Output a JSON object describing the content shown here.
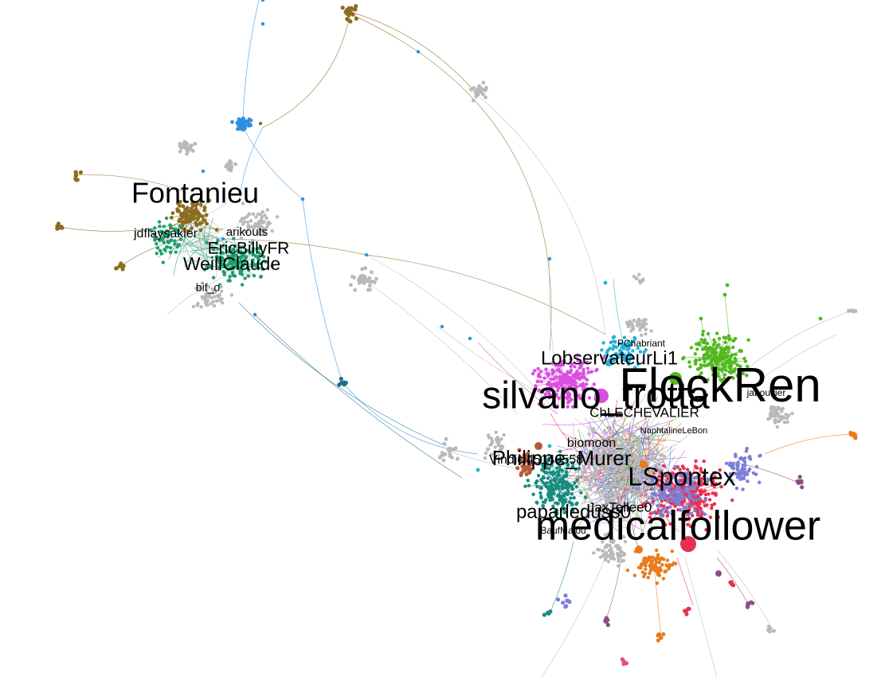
{
  "graph": {
    "labels": [
      {
        "text": "Fontanieu",
        "group": "olive",
        "size": 36
      },
      {
        "text": "jdflaysakier",
        "group": "green",
        "size": 16
      },
      {
        "text": "arikouts",
        "group": "gray",
        "size": 15
      },
      {
        "text": "EricBillyFR",
        "group": "green",
        "size": 21
      },
      {
        "text": "WeillClaude",
        "group": "green",
        "size": 23
      },
      {
        "text": "bif_o",
        "group": "gray",
        "size": 14
      },
      {
        "text": "PChabriant",
        "group": "sky",
        "size": 12
      },
      {
        "text": "LobservateurLi1",
        "group": "magenta",
        "size": 24
      },
      {
        "text": "FlockRen",
        "group": "lime",
        "size": 60
      },
      {
        "text": "silvano_trotta",
        "group": "magenta",
        "size": 48
      },
      {
        "text": "jabouvier",
        "group": "gray",
        "size": 12
      },
      {
        "text": "ChLECHEVALIER",
        "group": "gray",
        "size": 17
      },
      {
        "text": "NaphtalineLeBon",
        "group": "gray",
        "size": 11
      },
      {
        "text": "biomoon_",
        "group": "gray",
        "size": 16
      },
      {
        "text": "Philippe_Murer",
        "group": "teal",
        "size": 26
      },
      {
        "text": "Vindici45140558",
        "group": "gray",
        "size": 16
      },
      {
        "text": "LSpontex",
        "group": "blue",
        "size": 32
      },
      {
        "text": "paparleduss0",
        "group": "teal",
        "size": 24
      },
      {
        "text": "JaxTellee0",
        "group": "gray",
        "size": 17
      },
      {
        "text": "BaufMalou",
        "group": "gray",
        "size": 12
      },
      {
        "text": "medicalfollower",
        "group": "red",
        "size": 52
      }
    ],
    "colors": {
      "green": "#1e9e6e",
      "olive": "#8a6d1e",
      "gray": "#b9b9b9",
      "blue": "#2c8fe0",
      "darkteal": "#1d6f86",
      "magenta": "#d94fe0",
      "lime": "#52b81e",
      "sky": "#24b2d8",
      "red": "#e8304f",
      "orange": "#e97b1d",
      "purple": "#7a7fd6",
      "teal": "#168c7f",
      "brown": "#b65a3c",
      "plum": "#8c4d80",
      "pink": "#e0508f"
    }
  }
}
